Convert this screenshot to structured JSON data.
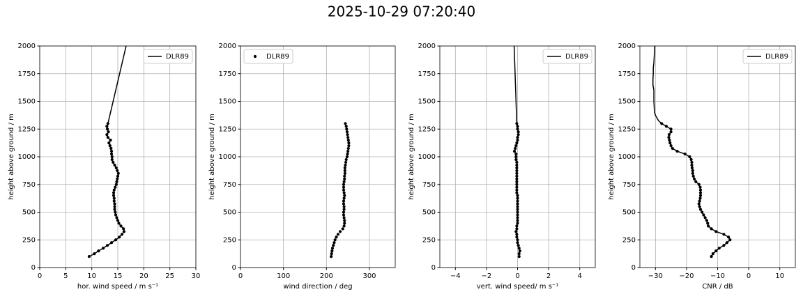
{
  "title": "2025-10-29 07:20:40",
  "chart_data": [
    {
      "type": "profile",
      "xlabel": "hor. wind speed / m s⁻¹",
      "ylabel": "height above ground / m",
      "xlim": [
        0,
        30
      ],
      "xticks": [
        0,
        5,
        10,
        15,
        20,
        25,
        30
      ],
      "ylim": [
        0,
        2000
      ],
      "yticks": [
        0,
        250,
        500,
        750,
        1000,
        1250,
        1500,
        1750,
        2000
      ],
      "grid": true,
      "legend": "upper right",
      "series": [
        {
          "name": "DLR89",
          "color": "#000000",
          "line": true,
          "marker": false,
          "x": [
            13.1,
            16.6
          ],
          "y": [
            1300,
            2000
          ]
        },
        {
          "color": "#000000",
          "line": true,
          "marker": true,
          "x": [
            9.5,
            10.5,
            11.3,
            12.2,
            13,
            13.8,
            14.6,
            15.3,
            15.8,
            16.2,
            16.1,
            15.6,
            15.2,
            15,
            14.8,
            14.6,
            14.5,
            14.4,
            14.4,
            14.4,
            14.3,
            14.3,
            14.2,
            14.2,
            14.3,
            14.5,
            14.7,
            14.8,
            14.9,
            15,
            15.1,
            14.9,
            14.7,
            14.4,
            14.1,
            13.9,
            13.9,
            13.8,
            13.8,
            13.7,
            13.5,
            13.3,
            13.6,
            13.1,
            12.9,
            13.2,
            13.0,
            12.9,
            13.1
          ],
          "y": [
            100,
            125,
            150,
            175,
            200,
            225,
            250,
            275,
            300,
            325,
            350,
            375,
            400,
            425,
            450,
            475,
            500,
            525,
            550,
            575,
            600,
            625,
            650,
            675,
            700,
            725,
            750,
            775,
            800,
            825,
            850,
            875,
            900,
            925,
            950,
            975,
            1000,
            1025,
            1050,
            1075,
            1100,
            1125,
            1150,
            1175,
            1200,
            1225,
            1250,
            1275,
            1300
          ]
        }
      ]
    },
    {
      "type": "profile",
      "xlabel": "wind direction / deg",
      "ylabel": "height above ground / m",
      "xlim": [
        0,
        360
      ],
      "xticks": [
        0,
        100,
        200,
        300
      ],
      "ylim": [
        0,
        2000
      ],
      "yticks": [
        0,
        250,
        500,
        750,
        1000,
        1250,
        1500,
        1750,
        2000
      ],
      "grid": true,
      "legend": "upper left",
      "series": [
        {
          "name": "DLR89",
          "color": "#000000",
          "line": false,
          "marker": true,
          "x": [
            211,
            212,
            213,
            214,
            216,
            218,
            220,
            223,
            227,
            232,
            238,
            241,
            242,
            242,
            241,
            240,
            240,
            241,
            241,
            240,
            240,
            241,
            242,
            241,
            240,
            240,
            240,
            241,
            242,
            242,
            243,
            243,
            243,
            244,
            245,
            246,
            248,
            249,
            250,
            251,
            252,
            252,
            251,
            250,
            249,
            248,
            247,
            246,
            244
          ],
          "y": [
            100,
            125,
            150,
            175,
            200,
            225,
            250,
            275,
            300,
            325,
            350,
            375,
            400,
            425,
            450,
            475,
            500,
            525,
            550,
            575,
            600,
            625,
            650,
            675,
            700,
            725,
            750,
            775,
            800,
            825,
            850,
            875,
            900,
            925,
            950,
            975,
            1000,
            1025,
            1050,
            1075,
            1100,
            1125,
            1150,
            1175,
            1200,
            1225,
            1250,
            1275,
            1300
          ]
        }
      ]
    },
    {
      "type": "profile",
      "xlabel": "vert. wind speed/ m s⁻¹",
      "ylabel": "height above ground / m",
      "xlim": [
        -5,
        5
      ],
      "xticks": [
        {
          "value": -4,
          "label": "−4"
        },
        {
          "value": -2,
          "label": "−2"
        },
        0,
        2,
        4
      ],
      "ylim": [
        0,
        2000
      ],
      "yticks": [
        0,
        250,
        500,
        750,
        1000,
        1250,
        1500,
        1750,
        2000
      ],
      "grid": true,
      "legend": "upper right",
      "series": [
        {
          "name": "DLR89",
          "color": "#000000",
          "line": true,
          "marker": false,
          "x": [
            -0.05,
            -0.22
          ],
          "y": [
            1300,
            2000
          ]
        },
        {
          "color": "#000000",
          "line": true,
          "marker": true,
          "x": [
            0.1,
            0.1,
            0.15,
            0.1,
            0.05,
            0,
            0,
            -0.05,
            -0.05,
            -0.1,
            -0.05,
            -0.05,
            0,
            0,
            0,
            0,
            0,
            0,
            0,
            0,
            0,
            0,
            0,
            -0.05,
            -0.05,
            -0.05,
            -0.05,
            -0.05,
            -0.05,
            -0.05,
            -0.05,
            -0.05,
            -0.05,
            -0.05,
            -0.05,
            -0.1,
            -0.1,
            -0.1,
            -0.2,
            -0.15,
            -0.1,
            -0.05,
            0,
            0,
            0.05,
            0.05,
            0,
            0,
            -0.05
          ],
          "y": [
            100,
            125,
            150,
            175,
            200,
            225,
            250,
            275,
            300,
            325,
            350,
            375,
            400,
            425,
            450,
            475,
            500,
            525,
            550,
            575,
            600,
            625,
            650,
            675,
            700,
            725,
            750,
            775,
            800,
            825,
            850,
            875,
            900,
            925,
            950,
            975,
            1000,
            1025,
            1050,
            1075,
            1100,
            1125,
            1150,
            1175,
            1200,
            1225,
            1250,
            1275,
            1300
          ]
        }
      ]
    },
    {
      "type": "profile",
      "xlabel": "CNR / dB",
      "ylabel": "height above ground / m",
      "xlim": [
        -35,
        15
      ],
      "xticks": [
        {
          "value": -30,
          "label": "−30"
        },
        {
          "value": -20,
          "label": "−20"
        },
        {
          "value": -10,
          "label": "−10"
        },
        0,
        10
      ],
      "ylim": [
        0,
        2000
      ],
      "yticks": [
        0,
        250,
        500,
        750,
        1000,
        1250,
        1500,
        1750,
        2000
      ],
      "grid": true,
      "legend": "upper right",
      "series": [
        {
          "name": "DLR89",
          "color": "#000000",
          "line": true,
          "marker": false,
          "x": [
            -28,
            -29,
            -29.5,
            -30,
            -30.3,
            -30.4,
            -30.5,
            -30.5,
            -30.5,
            -30.8,
            -30.8,
            -30.7,
            -30.7,
            -30.5,
            -30.4,
            -30.3,
            -30.2
          ],
          "y": [
            1300,
            1325,
            1350,
            1375,
            1400,
            1450,
            1500,
            1550,
            1600,
            1650,
            1700,
            1750,
            1800,
            1850,
            1900,
            1950,
            2000
          ]
        },
        {
          "color": "#000000",
          "line": true,
          "marker": true,
          "x": [
            -12,
            -11.5,
            -10.5,
            -9.5,
            -8,
            -7,
            -6,
            -6.5,
            -8,
            -10.5,
            -12,
            -13,
            -13.2,
            -13.5,
            -14,
            -14.5,
            -15,
            -15.5,
            -15.8,
            -16,
            -15.8,
            -15.6,
            -15.5,
            -15.5,
            -15.5,
            -15.6,
            -16,
            -17,
            -17.5,
            -17.8,
            -18,
            -18,
            -18.2,
            -18.3,
            -18.3,
            -18.5,
            -19,
            -20.5,
            -23,
            -24.5,
            -25,
            -25.3,
            -25.5,
            -25.7,
            -25.6,
            -25,
            -25,
            -26.5,
            -28
          ],
          "y": [
            100,
            125,
            150,
            175,
            200,
            225,
            250,
            275,
            300,
            325,
            350,
            375,
            400,
            425,
            450,
            475,
            500,
            525,
            550,
            575,
            600,
            625,
            650,
            675,
            700,
            725,
            750,
            775,
            800,
            825,
            850,
            875,
            900,
            925,
            950,
            975,
            1000,
            1025,
            1050,
            1075,
            1100,
            1125,
            1150,
            1175,
            1200,
            1225,
            1250,
            1275,
            1300
          ]
        }
      ]
    }
  ]
}
